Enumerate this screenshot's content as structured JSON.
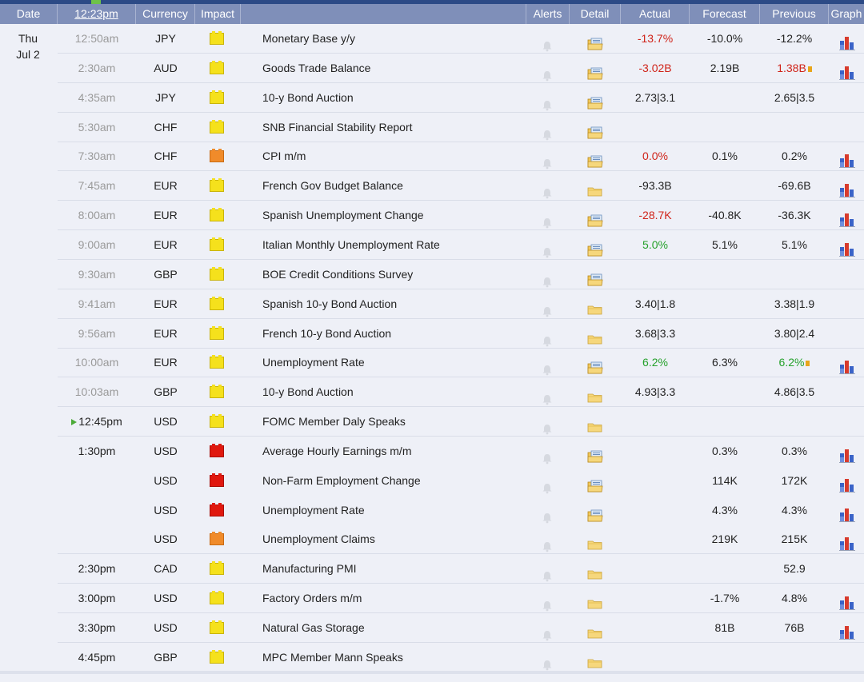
{
  "header": {
    "date": "Date",
    "time": "12:23pm",
    "currency": "Currency",
    "impact": "Impact",
    "alerts": "Alerts",
    "detail": "Detail",
    "actual": "Actual",
    "forecast": "Forecast",
    "previous": "Previous",
    "graph": "Graph"
  },
  "date_cell": {
    "day": "Thu",
    "date": "Jul 2"
  },
  "events": [
    {
      "time": "12:50am",
      "currency": "JPY",
      "impact": "yellow",
      "event": "Monetary Base y/y",
      "actual": "-13.7%",
      "actual_color": "red",
      "forecast": "-10.0%",
      "previous": "-12.2%",
      "previous_color": "",
      "revised": false,
      "graph": true,
      "detail": "open",
      "past": true
    },
    {
      "time": "2:30am",
      "currency": "AUD",
      "impact": "yellow",
      "event": "Goods Trade Balance",
      "actual": "-3.02B",
      "actual_color": "red",
      "forecast": "2.19B",
      "previous": "1.38B",
      "previous_color": "red",
      "revised": true,
      "graph": true,
      "detail": "open",
      "past": true
    },
    {
      "time": "4:35am",
      "currency": "JPY",
      "impact": "yellow",
      "event": "10-y Bond Auction",
      "actual": "2.73|3.1",
      "actual_color": "",
      "forecast": "",
      "previous": "2.65|3.5",
      "previous_color": "",
      "revised": false,
      "graph": false,
      "detail": "open",
      "past": true
    },
    {
      "time": "5:30am",
      "currency": "CHF",
      "impact": "yellow",
      "event": "SNB Financial Stability Report",
      "actual": "",
      "actual_color": "",
      "forecast": "",
      "previous": "",
      "previous_color": "",
      "revised": false,
      "graph": false,
      "detail": "open",
      "past": true
    },
    {
      "time": "7:30am",
      "currency": "CHF",
      "impact": "orange",
      "event": "CPI m/m",
      "actual": "0.0%",
      "actual_color": "red",
      "forecast": "0.1%",
      "previous": "0.2%",
      "previous_color": "",
      "revised": false,
      "graph": true,
      "detail": "open",
      "past": true
    },
    {
      "time": "7:45am",
      "currency": "EUR",
      "impact": "yellow",
      "event": "French Gov Budget Balance",
      "actual": "-93.3B",
      "actual_color": "",
      "forecast": "",
      "previous": "-69.6B",
      "previous_color": "",
      "revised": false,
      "graph": true,
      "detail": "closed",
      "past": true
    },
    {
      "time": "8:00am",
      "currency": "EUR",
      "impact": "yellow",
      "event": "Spanish Unemployment Change",
      "actual": "-28.7K",
      "actual_color": "red",
      "forecast": "-40.8K",
      "previous": "-36.3K",
      "previous_color": "",
      "revised": false,
      "graph": true,
      "detail": "open",
      "past": true
    },
    {
      "time": "9:00am",
      "currency": "EUR",
      "impact": "yellow",
      "event": "Italian Monthly Unemployment Rate",
      "actual": "5.0%",
      "actual_color": "green",
      "forecast": "5.1%",
      "previous": "5.1%",
      "previous_color": "",
      "revised": false,
      "graph": true,
      "detail": "open",
      "past": true
    },
    {
      "time": "9:30am",
      "currency": "GBP",
      "impact": "yellow",
      "event": "BOE Credit Conditions Survey",
      "actual": "",
      "actual_color": "",
      "forecast": "",
      "previous": "",
      "previous_color": "",
      "revised": false,
      "graph": false,
      "detail": "open",
      "past": true
    },
    {
      "time": "9:41am",
      "currency": "EUR",
      "impact": "yellow",
      "event": "Spanish 10-y Bond Auction",
      "actual": "3.40|1.8",
      "actual_color": "",
      "forecast": "",
      "previous": "3.38|1.9",
      "previous_color": "",
      "revised": false,
      "graph": false,
      "detail": "closed",
      "past": true
    },
    {
      "time": "9:56am",
      "currency": "EUR",
      "impact": "yellow",
      "event": "French 10-y Bond Auction",
      "actual": "3.68|3.3",
      "actual_color": "",
      "forecast": "",
      "previous": "3.80|2.4",
      "previous_color": "",
      "revised": false,
      "graph": false,
      "detail": "closed",
      "past": true
    },
    {
      "time": "10:00am",
      "currency": "EUR",
      "impact": "yellow",
      "event": "Unemployment Rate",
      "actual": "6.2%",
      "actual_color": "green",
      "forecast": "6.3%",
      "previous": "6.2%",
      "previous_color": "green",
      "revised": true,
      "graph": true,
      "detail": "open",
      "past": true
    },
    {
      "time": "10:03am",
      "currency": "GBP",
      "impact": "yellow",
      "event": "10-y Bond Auction",
      "actual": "4.93|3.3",
      "actual_color": "",
      "forecast": "",
      "previous": "4.86|3.5",
      "previous_color": "",
      "revised": false,
      "graph": false,
      "detail": "closed",
      "past": true
    },
    {
      "time": "12:45pm",
      "currency": "USD",
      "impact": "yellow",
      "event": "FOMC Member Daly Speaks",
      "actual": "",
      "actual_color": "",
      "forecast": "",
      "previous": "",
      "previous_color": "",
      "revised": false,
      "graph": false,
      "detail": "closed",
      "past": false,
      "next": true
    },
    {
      "time": "1:30pm",
      "currency": "USD",
      "impact": "red",
      "event": "Average Hourly Earnings m/m",
      "actual": "",
      "actual_color": "",
      "forecast": "0.3%",
      "previous": "0.3%",
      "previous_color": "",
      "revised": false,
      "graph": true,
      "detail": "open",
      "past": false
    },
    {
      "time": "",
      "currency": "USD",
      "impact": "red",
      "event": "Non-Farm Employment Change",
      "actual": "",
      "actual_color": "",
      "forecast": "114K",
      "previous": "172K",
      "previous_color": "",
      "revised": false,
      "graph": true,
      "detail": "open",
      "past": false
    },
    {
      "time": "",
      "currency": "USD",
      "impact": "red",
      "event": "Unemployment Rate",
      "actual": "",
      "actual_color": "",
      "forecast": "4.3%",
      "previous": "4.3%",
      "previous_color": "",
      "revised": false,
      "graph": true,
      "detail": "open",
      "past": false
    },
    {
      "time": "",
      "currency": "USD",
      "impact": "orange",
      "event": "Unemployment Claims",
      "actual": "",
      "actual_color": "",
      "forecast": "219K",
      "previous": "215K",
      "previous_color": "",
      "revised": false,
      "graph": true,
      "detail": "closed",
      "past": false
    },
    {
      "time": "2:30pm",
      "currency": "CAD",
      "impact": "yellow",
      "event": "Manufacturing PMI",
      "actual": "",
      "actual_color": "",
      "forecast": "",
      "previous": "52.9",
      "previous_color": "",
      "revised": false,
      "graph": false,
      "detail": "closed",
      "past": false
    },
    {
      "time": "3:00pm",
      "currency": "USD",
      "impact": "yellow",
      "event": "Factory Orders m/m",
      "actual": "",
      "actual_color": "",
      "forecast": "-1.7%",
      "previous": "4.8%",
      "previous_color": "",
      "revised": false,
      "graph": true,
      "detail": "closed",
      "past": false
    },
    {
      "time": "3:30pm",
      "currency": "USD",
      "impact": "yellow",
      "event": "Natural Gas Storage",
      "actual": "",
      "actual_color": "",
      "forecast": "81B",
      "previous": "76B",
      "previous_color": "",
      "revised": false,
      "graph": true,
      "detail": "closed",
      "past": false
    },
    {
      "time": "4:45pm",
      "currency": "GBP",
      "impact": "yellow",
      "event": "MPC Member Mann Speaks",
      "actual": "",
      "actual_color": "",
      "forecast": "",
      "previous": "",
      "previous_color": "",
      "revised": false,
      "graph": false,
      "detail": "closed",
      "past": false
    }
  ],
  "icons": {
    "alert": "bell-icon",
    "detail_open": "folder-open-icon",
    "detail_closed": "folder-icon",
    "graph": "bar-chart-icon",
    "revised": "revised-marker-icon",
    "next": "next-event-icon"
  },
  "colors": {
    "header_bg": "#7f8fb9",
    "top_strip": "#2c4a86",
    "negative": "#d0241a",
    "positive": "#25a12b",
    "impact_low": "#f5e11c",
    "impact_medium": "#f08b2a",
    "impact_high": "#e0180e"
  }
}
